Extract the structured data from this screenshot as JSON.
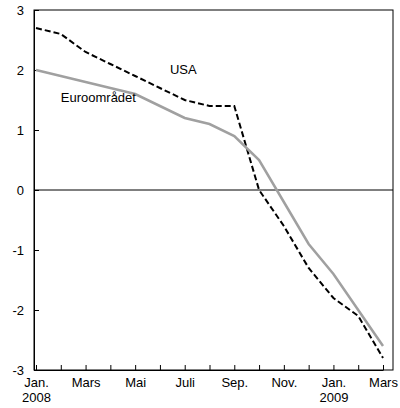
{
  "chart_data": {
    "type": "line",
    "categories": [
      "Jan. 2008",
      null,
      "Mars",
      null,
      "Mai",
      null,
      "Juli",
      null,
      "Sep.",
      null,
      "Nov.",
      null,
      "Jan. 2009",
      null,
      "Mars"
    ],
    "series": [
      {
        "name": "USA",
        "color": "#000000",
        "line_style": "dashed",
        "values": [
          2.7,
          2.6,
          2.3,
          2.1,
          1.9,
          1.7,
          1.5,
          1.4,
          1.4,
          0.0,
          -0.6,
          -1.3,
          -1.8,
          -2.1,
          -2.8
        ]
      },
      {
        "name": "Euroområdet",
        "color": "#a0a0a0",
        "line_style": "solid",
        "values": [
          2.0,
          1.9,
          1.8,
          1.7,
          1.6,
          1.4,
          1.2,
          1.1,
          0.9,
          0.5,
          -0.2,
          -0.9,
          -1.4,
          -2.0,
          -2.6
        ]
      }
    ],
    "ylim": [
      -3,
      3
    ],
    "yticks": [
      -3,
      -2,
      -1,
      0,
      1,
      2,
      3
    ],
    "grid": false
  }
}
